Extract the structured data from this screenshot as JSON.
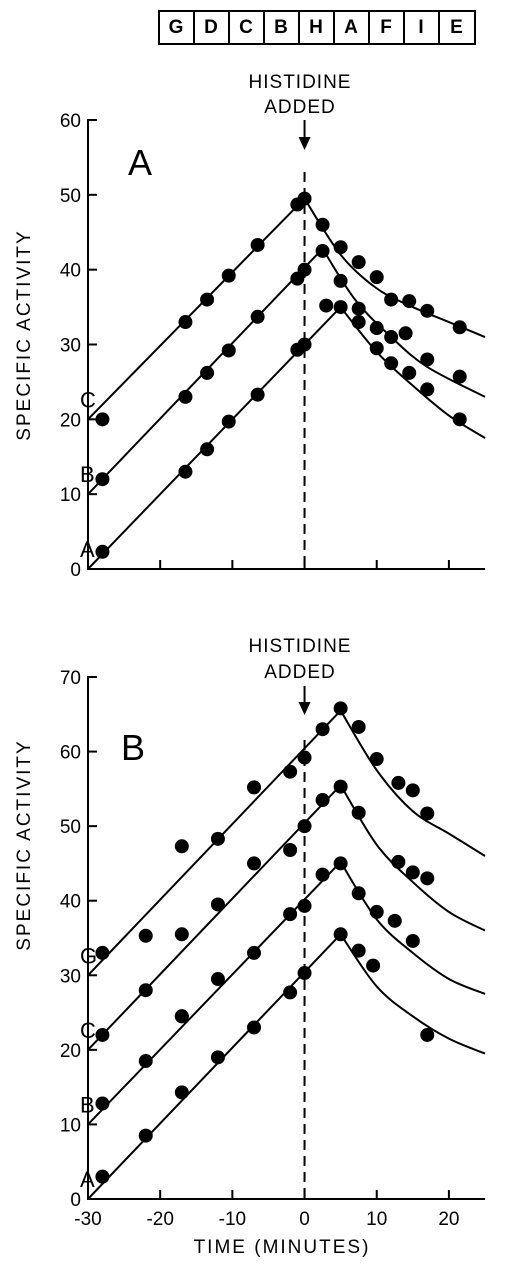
{
  "gene_order": [
    "G",
    "D",
    "C",
    "B",
    "H",
    "A",
    "F",
    "I",
    "E"
  ],
  "annotation": {
    "line1": "HISTIDINE",
    "line2": "ADDED"
  },
  "ylabel": "SPECIFIC ACTIVITY",
  "xlabel": "TIME (MINUTES)",
  "chart_data": [
    {
      "type": "scatter",
      "panel": "A",
      "xlim": [
        -30,
        25
      ],
      "ylim": [
        0,
        60
      ],
      "xticks": [
        -30,
        -20,
        -10,
        0,
        10,
        20
      ],
      "yticks": [
        0,
        10,
        20,
        30,
        40,
        50,
        60
      ],
      "series": [
        {
          "name": "C",
          "fit_rise": [
            [
              -30,
              20
            ],
            [
              0,
              49.5
            ]
          ],
          "fit_decay": [
            [
              0,
              49.5
            ],
            [
              5,
              42
            ],
            [
              10,
              37.5
            ],
            [
              15,
              35
            ],
            [
              20,
              33
            ],
            [
              25,
              31
            ]
          ],
          "points": [
            [
              -28,
              20
            ],
            [
              -16.5,
              33
            ],
            [
              -13.5,
              36
            ],
            [
              -10.5,
              39.2
            ],
            [
              -6.5,
              43.3
            ],
            [
              -1,
              48.7
            ],
            [
              0,
              49.5
            ],
            [
              2.5,
              46
            ],
            [
              5,
              43
            ],
            [
              7.5,
              41
            ],
            [
              10,
              39
            ],
            [
              12,
              36
            ],
            [
              14.5,
              35.8
            ],
            [
              17,
              34.5
            ],
            [
              21.5,
              32.3
            ]
          ]
        },
        {
          "name": "B",
          "fit_rise": [
            [
              -30,
              10
            ],
            [
              2.5,
              42.8
            ]
          ],
          "fit_decay": [
            [
              2.5,
              42.8
            ],
            [
              7,
              36
            ],
            [
              12,
              31
            ],
            [
              17,
              27
            ],
            [
              25,
              23
            ]
          ],
          "points": [
            [
              -28,
              12
            ],
            [
              -16.5,
              23
            ],
            [
              -13.5,
              26.2
            ],
            [
              -10.5,
              29.2
            ],
            [
              -6.5,
              33.7
            ],
            [
              -1,
              38.8
            ],
            [
              0,
              40
            ],
            [
              2.5,
              42.5
            ],
            [
              5,
              38.5
            ],
            [
              7.5,
              34.8
            ],
            [
              10,
              32.2
            ],
            [
              12,
              31
            ],
            [
              14,
              31.5
            ],
            [
              17,
              28
            ],
            [
              21.5,
              25.7
            ]
          ]
        },
        {
          "name": "A",
          "fit_rise": [
            [
              -30,
              0
            ],
            [
              5,
              35
            ]
          ],
          "fit_decay": [
            [
              5,
              35
            ],
            [
              10,
              29
            ],
            [
              15,
              24.5
            ],
            [
              20,
              20.5
            ],
            [
              25,
              17.5
            ]
          ],
          "points": [
            [
              -28,
              2.3
            ],
            [
              -16.5,
              13
            ],
            [
              -13.5,
              16
            ],
            [
              -10.5,
              19.7
            ],
            [
              -6.5,
              23.3
            ],
            [
              -1,
              29.3
            ],
            [
              0,
              30
            ],
            [
              3,
              35.2
            ],
            [
              5,
              35
            ],
            [
              7.5,
              33
            ],
            [
              10,
              29.5
            ],
            [
              12,
              27.5
            ],
            [
              14.5,
              26.2
            ],
            [
              17,
              24
            ],
            [
              21.5,
              20
            ]
          ]
        }
      ]
    },
    {
      "type": "scatter",
      "panel": "B",
      "xlim": [
        -30,
        25
      ],
      "ylim": [
        0,
        70
      ],
      "xticks": [
        -30,
        -20,
        -10,
        0,
        10,
        20
      ],
      "xticklabels": [
        "-30",
        "-20",
        "-10",
        "0",
        "10",
        "20"
      ],
      "yticks": [
        0,
        10,
        20,
        30,
        40,
        50,
        60,
        70
      ],
      "series": [
        {
          "name": "G",
          "fit_rise": [
            [
              -30,
              30
            ],
            [
              5,
              65.5
            ]
          ],
          "fit_decay": [
            [
              5,
              65.5
            ],
            [
              10,
              57.5
            ],
            [
              15,
              52
            ],
            [
              20,
              49
            ],
            [
              25,
              46
            ]
          ],
          "points": [
            [
              -28,
              33
            ],
            [
              -22,
              35.3
            ],
            [
              -17,
              35.5
            ],
            [
              -17,
              47.3
            ],
            [
              -12,
              48.3
            ],
            [
              -7,
              55.2
            ],
            [
              -2,
              57.3
            ],
            [
              0,
              59.2
            ],
            [
              2.5,
              63
            ],
            [
              5,
              65.8
            ],
            [
              7.5,
              63.3
            ],
            [
              10,
              59
            ],
            [
              13,
              55.8
            ],
            [
              15,
              54.8
            ],
            [
              17,
              51.7
            ]
          ]
        },
        {
          "name": "C",
          "fit_rise": [
            [
              -30,
              20
            ],
            [
              5,
              55.5
            ]
          ],
          "fit_decay": [
            [
              5,
              55.5
            ],
            [
              10,
              47.5
            ],
            [
              15,
              42.5
            ],
            [
              20,
              38.5
            ],
            [
              25,
              36
            ]
          ],
          "points": [
            [
              -28,
              22
            ],
            [
              -22,
              28
            ],
            [
              -17,
              24.5
            ],
            [
              -12,
              39.5
            ],
            [
              -7,
              45
            ],
            [
              -2,
              46.8
            ],
            [
              0,
              50
            ],
            [
              2.5,
              53.5
            ],
            [
              5,
              55.3
            ],
            [
              7.5,
              51.8
            ],
            [
              13,
              45.2
            ],
            [
              15,
              43.8
            ],
            [
              17,
              43
            ]
          ]
        },
        {
          "name": "B",
          "fit_rise": [
            [
              -30,
              10
            ],
            [
              5,
              45.2
            ]
          ],
          "fit_decay": [
            [
              5,
              45.2
            ],
            [
              10,
              37.5
            ],
            [
              15,
              33
            ],
            [
              20,
              29.5
            ],
            [
              25,
              27.5
            ]
          ],
          "points": [
            [
              -28,
              12.8
            ],
            [
              -22,
              18.5
            ],
            [
              -17,
              24.5
            ],
            [
              -12,
              29.5
            ],
            [
              -7,
              33
            ],
            [
              -2,
              38.2
            ],
            [
              0,
              39.3
            ],
            [
              2.5,
              43.5
            ],
            [
              5,
              45
            ],
            [
              7.5,
              41
            ],
            [
              10,
              38.5
            ],
            [
              12.5,
              37.3
            ],
            [
              15,
              34.6
            ]
          ]
        },
        {
          "name": "A",
          "fit_rise": [
            [
              -30,
              0
            ],
            [
              5,
              35.5
            ]
          ],
          "fit_decay": [
            [
              5,
              35.5
            ],
            [
              10,
              28.5
            ],
            [
              15,
              24.5
            ],
            [
              20,
              21.5
            ],
            [
              25,
              19.5
            ]
          ],
          "points": [
            [
              -28,
              3
            ],
            [
              -22,
              8.5
            ],
            [
              -17,
              14.3
            ],
            [
              -12,
              19
            ],
            [
              -7,
              23
            ],
            [
              -2,
              27.7
            ],
            [
              0,
              30.3
            ],
            [
              5,
              35.5
            ],
            [
              7.5,
              33.3
            ],
            [
              9.5,
              31.3
            ],
            [
              17,
              22
            ]
          ]
        }
      ]
    }
  ]
}
